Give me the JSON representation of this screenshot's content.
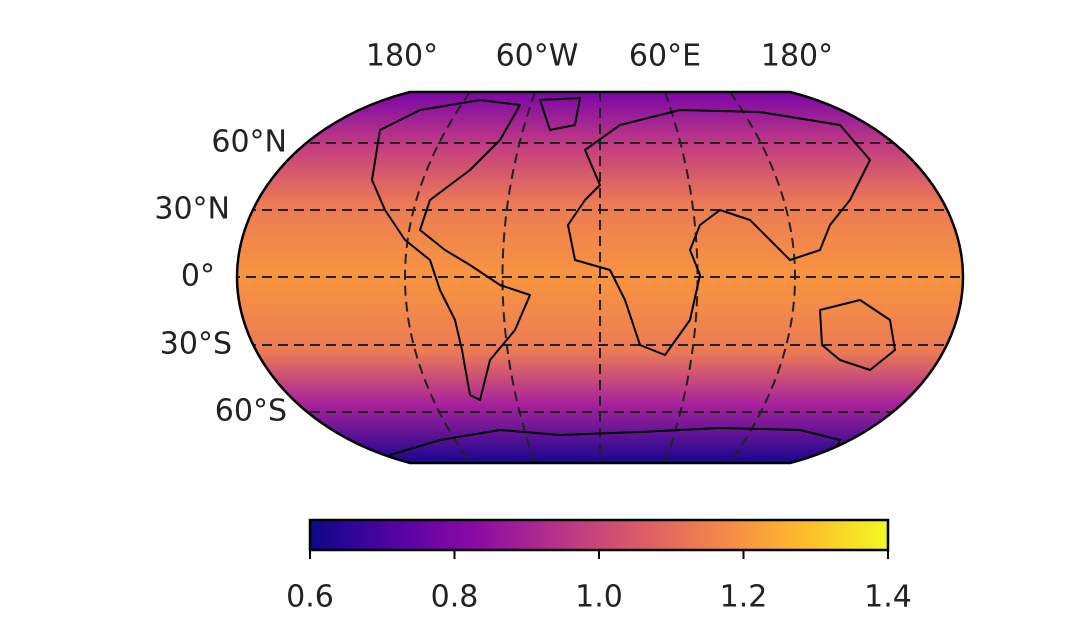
{
  "map": {
    "lon_labels": [
      "180°",
      "60°W",
      "60°E",
      "180°"
    ],
    "lat_labels": [
      "60°N",
      "30°N",
      "0°",
      "30°S",
      "60°S"
    ],
    "colorbar": {
      "cmap": "plasma",
      "colors": [
        "#0d0887",
        "#5302a3",
        "#8b0aa5",
        "#b83289",
        "#db5c68",
        "#f48849",
        "#febd2a",
        "#f0f921"
      ],
      "lim": [
        0.6,
        1.4
      ],
      "ticks": [
        0.6,
        0.8,
        {
          "value": 1,
          "label": "1.0"
        },
        1.2,
        1.4
      ]
    }
  }
}
